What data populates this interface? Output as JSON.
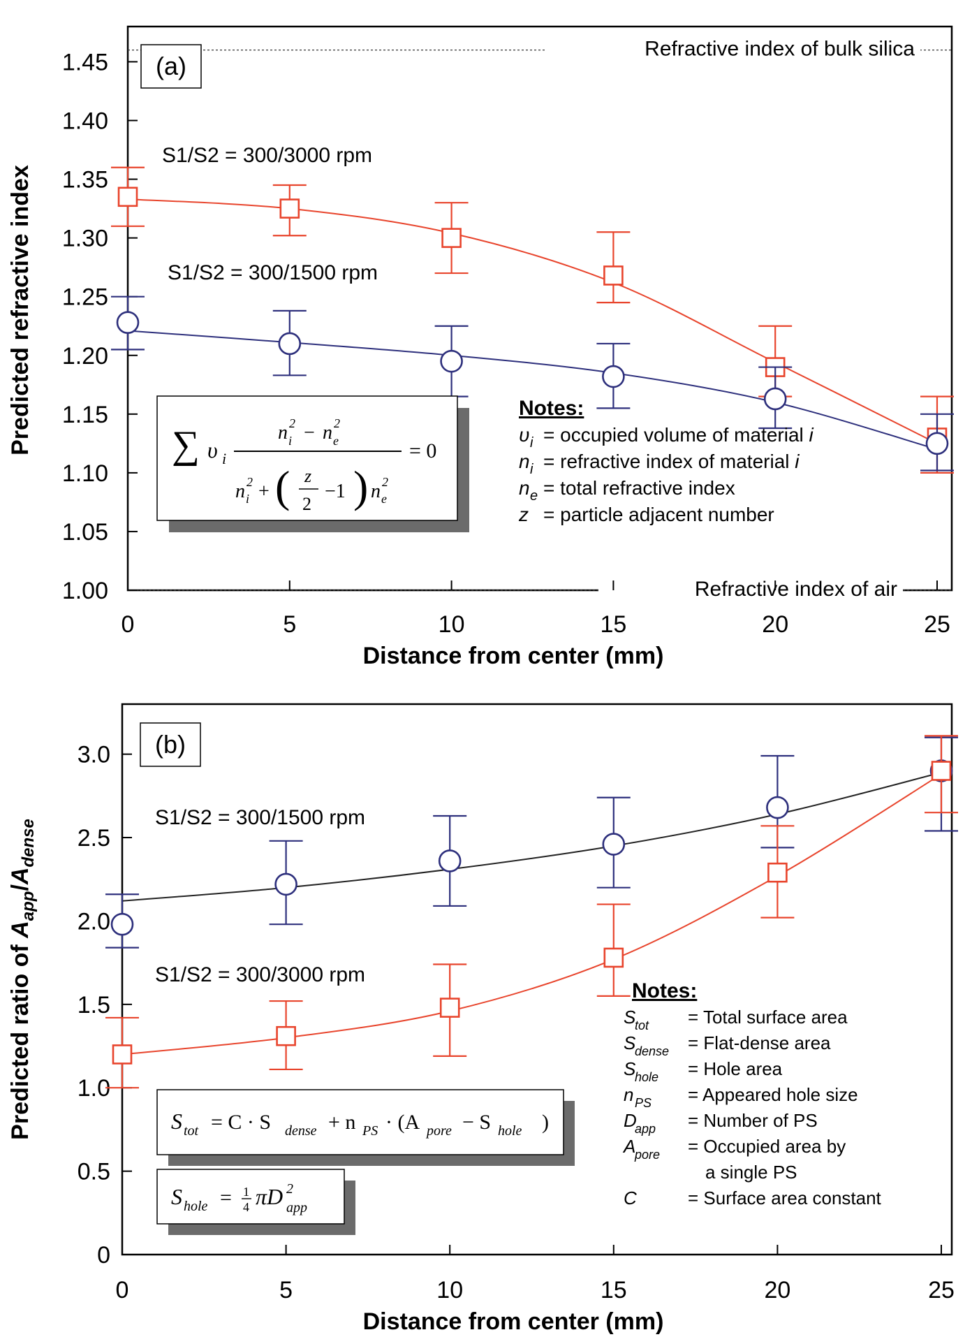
{
  "chart_data": [
    {
      "type": "line",
      "panel_label": "(a)",
      "xlabel": "Distance from center (mm)",
      "ylabel": "Predicted refractive index",
      "xlim": [
        0,
        25
      ],
      "ylim": [
        1.0,
        1.48
      ],
      "xticks": [
        "0",
        "5",
        "10",
        "15",
        "20",
        "25"
      ],
      "yticks": [
        "1.00",
        "1.05",
        "1.10",
        "1.15",
        "1.20",
        "1.25",
        "1.30",
        "1.35",
        "1.40",
        "1.45"
      ],
      "x": [
        0,
        5,
        10,
        15,
        20,
        25
      ],
      "series": [
        {
          "name": "S1/S2 = 300/3000 rpm",
          "color": "#e8442c",
          "marker": "square",
          "values": [
            1.335,
            1.325,
            1.3,
            1.268,
            1.19,
            1.13
          ],
          "err_low": [
            1.31,
            1.302,
            1.27,
            1.245,
            1.165,
            1.1
          ],
          "err_high": [
            1.36,
            1.345,
            1.33,
            1.305,
            1.225,
            1.165
          ],
          "fit": [
            1.333,
            1.325,
            1.304,
            1.262,
            1.194,
            1.125
          ]
        },
        {
          "name": "S1/S2 = 300/1500 rpm",
          "color": "#2d2f7c",
          "marker": "circle",
          "values": [
            1.228,
            1.21,
            1.195,
            1.182,
            1.163,
            1.125
          ],
          "err_low": [
            1.205,
            1.183,
            1.165,
            1.155,
            1.138,
            1.102
          ],
          "err_high": [
            1.25,
            1.238,
            1.225,
            1.21,
            1.19,
            1.15
          ],
          "fit": [
            1.221,
            1.211,
            1.2,
            1.185,
            1.16,
            1.12
          ]
        }
      ],
      "reference_lines": [
        {
          "value": 1.46,
          "label": "Refractive index of bulk silica"
        },
        {
          "value": 1.0,
          "label": "Refractive index of air"
        }
      ],
      "notes_title": "Notes:",
      "notes": [
        {
          "sym": "υ",
          "sub": "i",
          "text": "= occupied volume of material",
          "tail": "i"
        },
        {
          "sym": "n",
          "sub": "i",
          "text": "= refractive index of material",
          "tail": "i"
        },
        {
          "sym": "n",
          "sub": "e",
          "text": "= total refractive index",
          "tail": ""
        },
        {
          "sym": "z",
          "sub": "",
          "text": "= particle adjacent number",
          "tail": ""
        }
      ]
    },
    {
      "type": "line",
      "panel_label": "(b)",
      "xlabel": "Distance from center (mm)",
      "ylabel": "Predicted ratio of A_app/A_dense",
      "ylabel_parts": {
        "prefix": "Predicted ratio of ",
        "a1": "A",
        "s1": "app",
        "slash": "/",
        "a2": "A",
        "s2": "dense"
      },
      "xlim": [
        0,
        25
      ],
      "ylim": [
        0,
        3.3
      ],
      "xticks": [
        "0",
        "5",
        "10",
        "15",
        "20",
        "25"
      ],
      "yticks": [
        "0",
        "0.5",
        "1.0",
        "1.5",
        "2.0",
        "2.5",
        "3.0"
      ],
      "x": [
        0,
        5,
        10,
        15,
        20,
        25
      ],
      "series": [
        {
          "name": "S1/S2 = 300/1500 rpm",
          "color": "#2d2f7c",
          "line_color": "#222222",
          "marker": "circle",
          "values": [
            1.98,
            2.22,
            2.36,
            2.46,
            2.68,
            2.9
          ],
          "err_low": [
            1.84,
            1.98,
            2.09,
            2.2,
            2.44,
            2.54
          ],
          "err_high": [
            2.16,
            2.48,
            2.63,
            2.74,
            2.99,
            3.1
          ],
          "fit": [
            2.12,
            2.2,
            2.31,
            2.45,
            2.64,
            2.89
          ]
        },
        {
          "name": "S1/S2 = 300/3000 rpm",
          "color": "#e8442c",
          "marker": "square",
          "values": [
            1.2,
            1.31,
            1.48,
            1.78,
            2.29,
            2.9
          ],
          "err_low": [
            1.0,
            1.11,
            1.19,
            1.55,
            2.02,
            2.65
          ],
          "err_high": [
            1.42,
            1.52,
            1.74,
            2.1,
            2.57,
            3.11
          ],
          "fit": [
            1.2,
            1.3,
            1.46,
            1.77,
            2.27,
            2.88
          ]
        }
      ],
      "notes_title": "Notes:",
      "notes": [
        {
          "sym": "S",
          "sub": "tot",
          "text": "= Total surface area"
        },
        {
          "sym": "S",
          "sub": "dense",
          "text": "= Flat-dense area"
        },
        {
          "sym": "S",
          "sub": "hole",
          "text": "= Hole area"
        },
        {
          "sym": "n",
          "sub": "PS",
          "text": "= Appeared hole size"
        },
        {
          "sym": "D",
          "sub": "app",
          "text": "= Number of PS"
        },
        {
          "sym": "A",
          "sub": "pore",
          "text": "= Occupied area by",
          "cont": "a single PS"
        },
        {
          "sym": "C",
          "sub": "",
          "text": "= Surface area constant"
        }
      ]
    }
  ]
}
